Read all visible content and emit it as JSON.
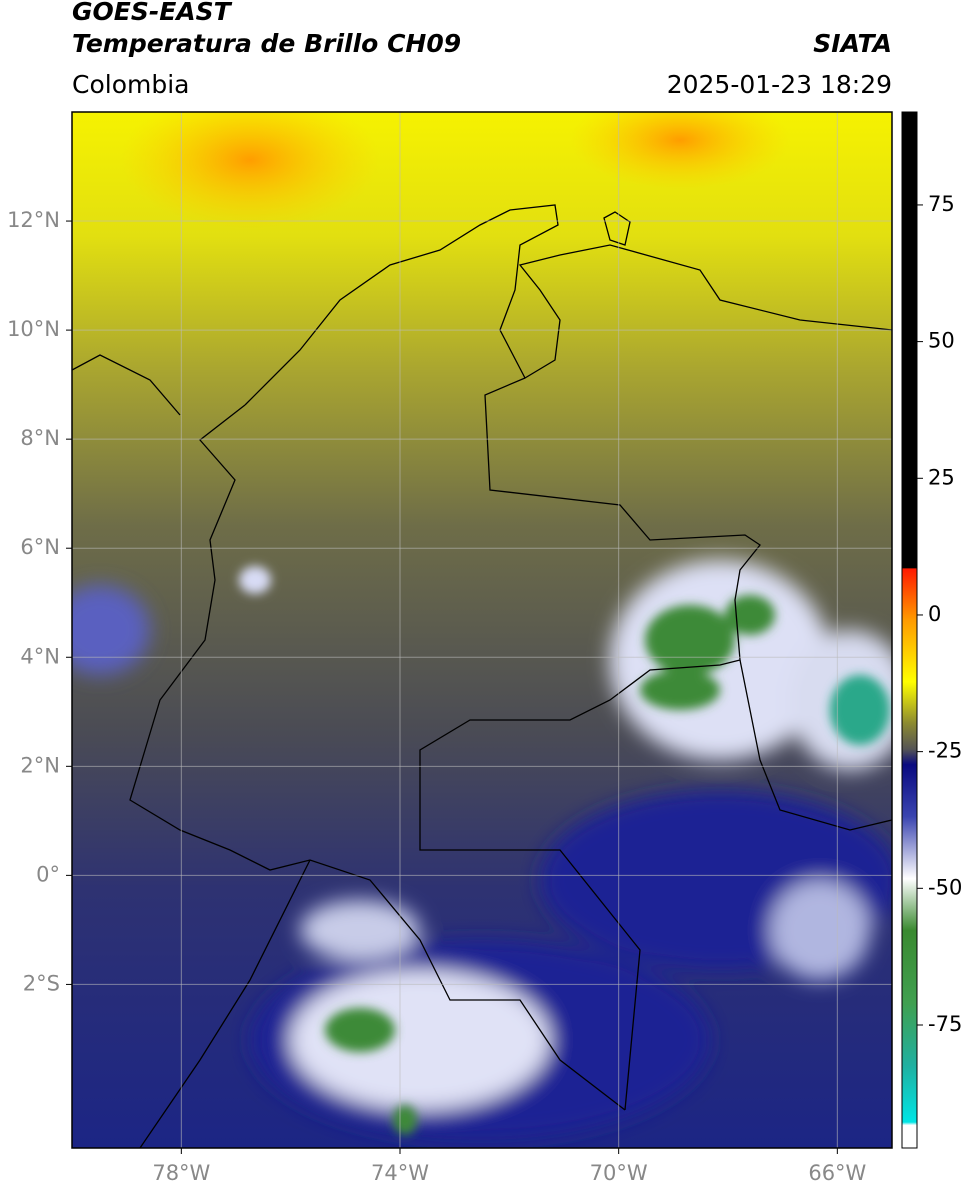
{
  "header": {
    "title": "GOES-EAST",
    "subtitle": "Temperatura de Brillo CH09",
    "source": "SIATA",
    "region": "Colombia",
    "timestamp": "2025-01-23 18:29"
  },
  "map": {
    "xlim": [
      -80,
      -65
    ],
    "ylim": [
      -5,
      14
    ],
    "xticks": [
      {
        "value": -78,
        "label": "78°W"
      },
      {
        "value": -74,
        "label": "74°W"
      },
      {
        "value": -70,
        "label": "70°W"
      },
      {
        "value": -66,
        "label": "66°W"
      }
    ],
    "yticks": [
      {
        "value": 12,
        "label": "12°N"
      },
      {
        "value": 10,
        "label": "10°N"
      },
      {
        "value": 8,
        "label": "8°N"
      },
      {
        "value": 6,
        "label": "6°N"
      },
      {
        "value": 4,
        "label": "4°N"
      },
      {
        "value": 2,
        "label": "2°N"
      },
      {
        "value": 0,
        "label": "0°"
      },
      {
        "value": -2,
        "label": "2°S"
      }
    ]
  },
  "colorbar": {
    "lim": [
      -97.5,
      92
    ],
    "ticks": [
      75,
      50,
      25,
      0,
      -25,
      -50,
      -75
    ]
  }
}
